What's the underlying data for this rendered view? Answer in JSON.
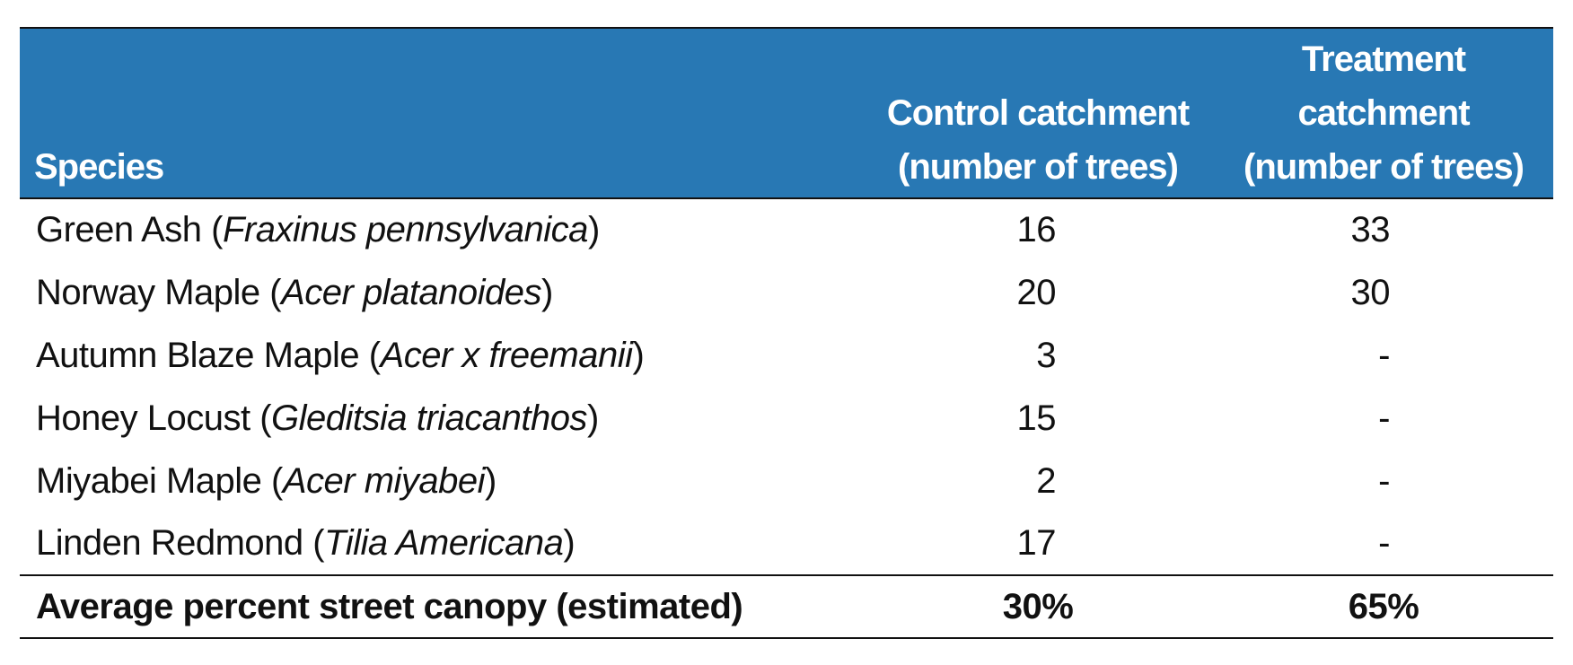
{
  "table": {
    "header": [
      "Species",
      "Control catchment (number of trees)",
      "Treatment catchment (number of trees)"
    ],
    "rows": [
      {
        "species": {
          "plain": "Green Ash (",
          "italic": "Fraxinus pennsylvanica",
          "after": ")"
        },
        "control": 16,
        "treatment": 33
      },
      {
        "species": {
          "plain": "Norway Maple (",
          "italic": "Acer platanoides",
          "after": ")"
        },
        "control": 20,
        "treatment": 30
      },
      {
        "species": {
          "plain": "Autumn Blaze Maple (",
          "italic": "Acer x freemanii",
          "after": ")"
        },
        "control": 3,
        "treatment": "-"
      },
      {
        "species": {
          "plain": "Honey Locust (",
          "italic": "Gleditsia triacanthos",
          "after": ")"
        },
        "control": 15,
        "treatment": "-"
      },
      {
        "species": {
          "plain": "Miyabei Maple (",
          "italic": "Acer miyabei",
          "after": ")"
        },
        "control": 2,
        "treatment": "-"
      },
      {
        "species": {
          "plain": "Linden Redmond (",
          "italic": "Tilia Americana",
          "after": ")"
        },
        "control": 17,
        "treatment": "-"
      }
    ],
    "footer": [
      "Average percent street canopy (estimated)",
      "30%",
      "65%"
    ]
  }
}
